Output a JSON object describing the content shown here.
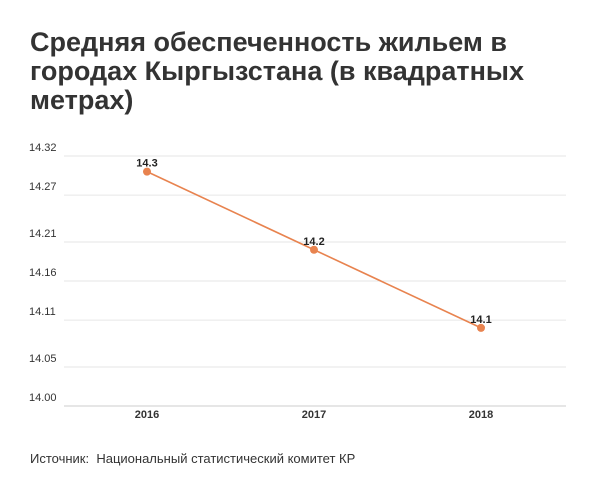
{
  "chart_data": {
    "type": "line",
    "title": "Средняя обеспеченность жильем в городах Кыргызстана (в квадратных метрах)",
    "categories": [
      "2016",
      "2017",
      "2018"
    ],
    "series": [
      {
        "values": [
          14.3,
          14.2,
          14.1
        ],
        "labels": [
          "14.3",
          "14.2",
          "14.1"
        ]
      }
    ],
    "y_ticks": [
      "14.00",
      "14.05",
      "14.11",
      "14.16",
      "14.21",
      "14.27",
      "14.32"
    ],
    "ylim": [
      14.0,
      14.32
    ],
    "grid": true,
    "line_color": "#e8834f"
  },
  "source": {
    "label": "Источник:",
    "text": "Национальный статистический комитет КР"
  }
}
